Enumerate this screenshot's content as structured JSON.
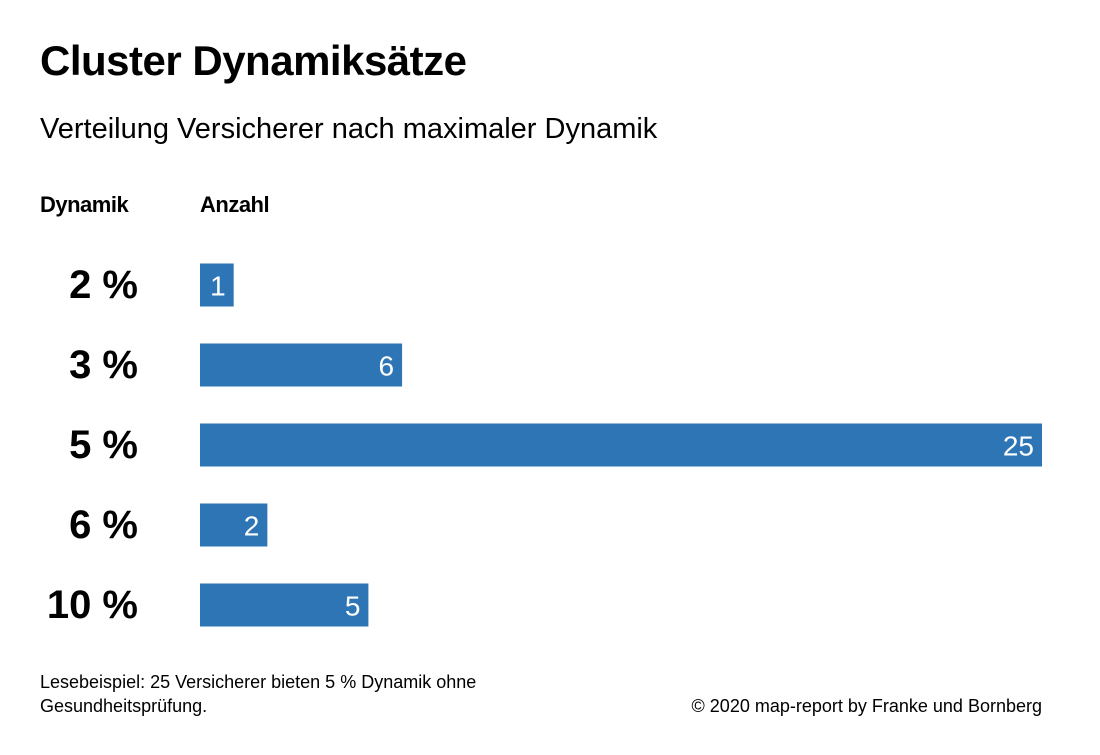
{
  "header": {
    "title": "Cluster Dynamiksätze",
    "subtitle": "Verteilung Versicherer nach maximaler Dynamik"
  },
  "columns": {
    "category_header": "Dynamik",
    "value_header": "Anzahl"
  },
  "chart_data": {
    "type": "bar",
    "orientation": "horizontal",
    "title": "Cluster Dynamiksätze",
    "subtitle": "Verteilung Versicherer nach maximaler Dynamik",
    "xlabel": "Anzahl",
    "ylabel": "Dynamik",
    "categories": [
      "2 %",
      "3 %",
      "5 %",
      "6 %",
      "10 %"
    ],
    "values": [
      1,
      6,
      25,
      2,
      5
    ],
    "xlim": [
      0,
      25
    ],
    "grid": false,
    "bar_color": "#2e75b6"
  },
  "footer": {
    "note": "Lesebeispiel: 25 Versicherer bieten 5 %  Dynamik ohne Gesundheitsprüfung.",
    "copyright": "© 2020 map-report by Franke und Bornberg"
  }
}
